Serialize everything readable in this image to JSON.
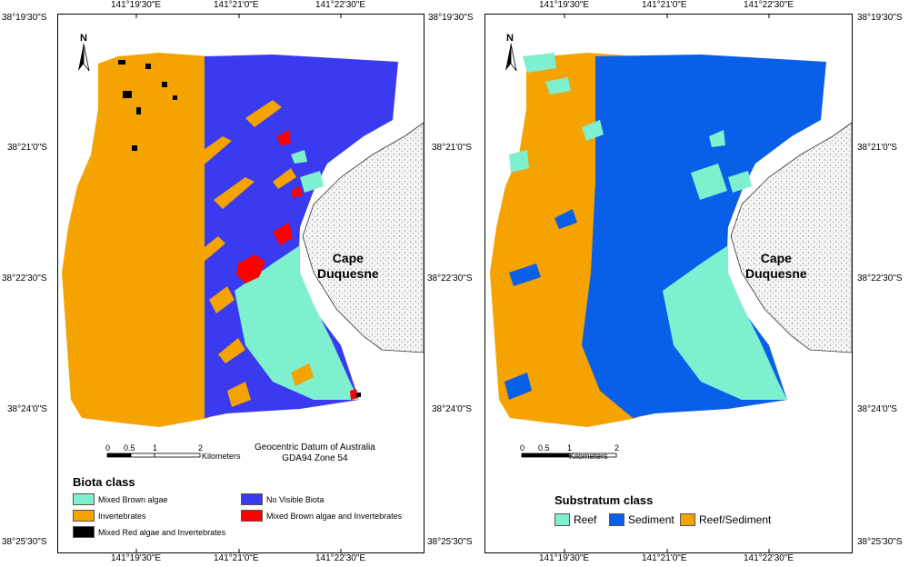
{
  "colors": {
    "reef": "#7ef0cf",
    "mixed_brown": "#7ef0cf",
    "invertebrates": "#f5a300",
    "no_visible_biota": "#3a3af0",
    "sediment": "#0a5fe8",
    "reef_sediment": "#f5a300",
    "mixed_red": "#000000",
    "mixed_brown_inv": "#ff0000",
    "land": "#f4f4f4"
  },
  "top_ticks": [
    "141°19'30\"E",
    "141°21'0\"E",
    "141°22'30\"E"
  ],
  "bottom_ticks": [
    "141°19'30\"E",
    "141°21'0\"E",
    "141°22'30\"E"
  ],
  "left_ticks": [
    "38°19'30\"S",
    "38°21'0\"S",
    "38°22'30\"S",
    "38°24'0\"S",
    "38°25'30\"S"
  ],
  "mid_ticks": [
    "38°19'30\"S",
    "38°21'0\"S",
    "38°22'30\"S",
    "38°24'0\"S",
    "38°25'30\"S"
  ],
  "right_ticks": [
    "38°19'30\"S",
    "38°21'0\"S",
    "38°22'30\"S",
    "38°24'0\"S",
    "38°25'30\"S"
  ],
  "left_map": {
    "north": "N",
    "place_line1": "Cape",
    "place_line2": "Duquesne",
    "scale_ticks": [
      "0",
      "0.5",
      "1",
      "2"
    ],
    "scale_unit": "Kilometers",
    "datum_line1": "Geocentric Datum of Australia",
    "datum_line2": "GDA94 Zone 54",
    "legend_title": "Biota class",
    "legend": [
      {
        "label": "Mixed Brown algae",
        "color": "#7ef0cf"
      },
      {
        "label": "No Visible Biota",
        "color": "#3a3af0"
      },
      {
        "label": "Invertebrates",
        "color": "#f5a300"
      },
      {
        "label": "Mixed Brown algae and Invertebrates",
        "color": "#ff0000"
      },
      {
        "label": "Mixed Red algae and Invertebrates",
        "color": "#000000"
      }
    ]
  },
  "right_map": {
    "north": "N",
    "place_line1": "Cape",
    "place_line2": "Duquesne",
    "scale_ticks": [
      "0",
      "0.5",
      "1",
      "2"
    ],
    "scale_unit": "Kilometers",
    "legend_title": "Substratum class",
    "legend": [
      {
        "label": "Reef",
        "color": "#7ef0cf"
      },
      {
        "label": "Sediment",
        "color": "#0a5fe8"
      },
      {
        "label": "Reef/Sediment",
        "color": "#f5a300"
      }
    ]
  }
}
